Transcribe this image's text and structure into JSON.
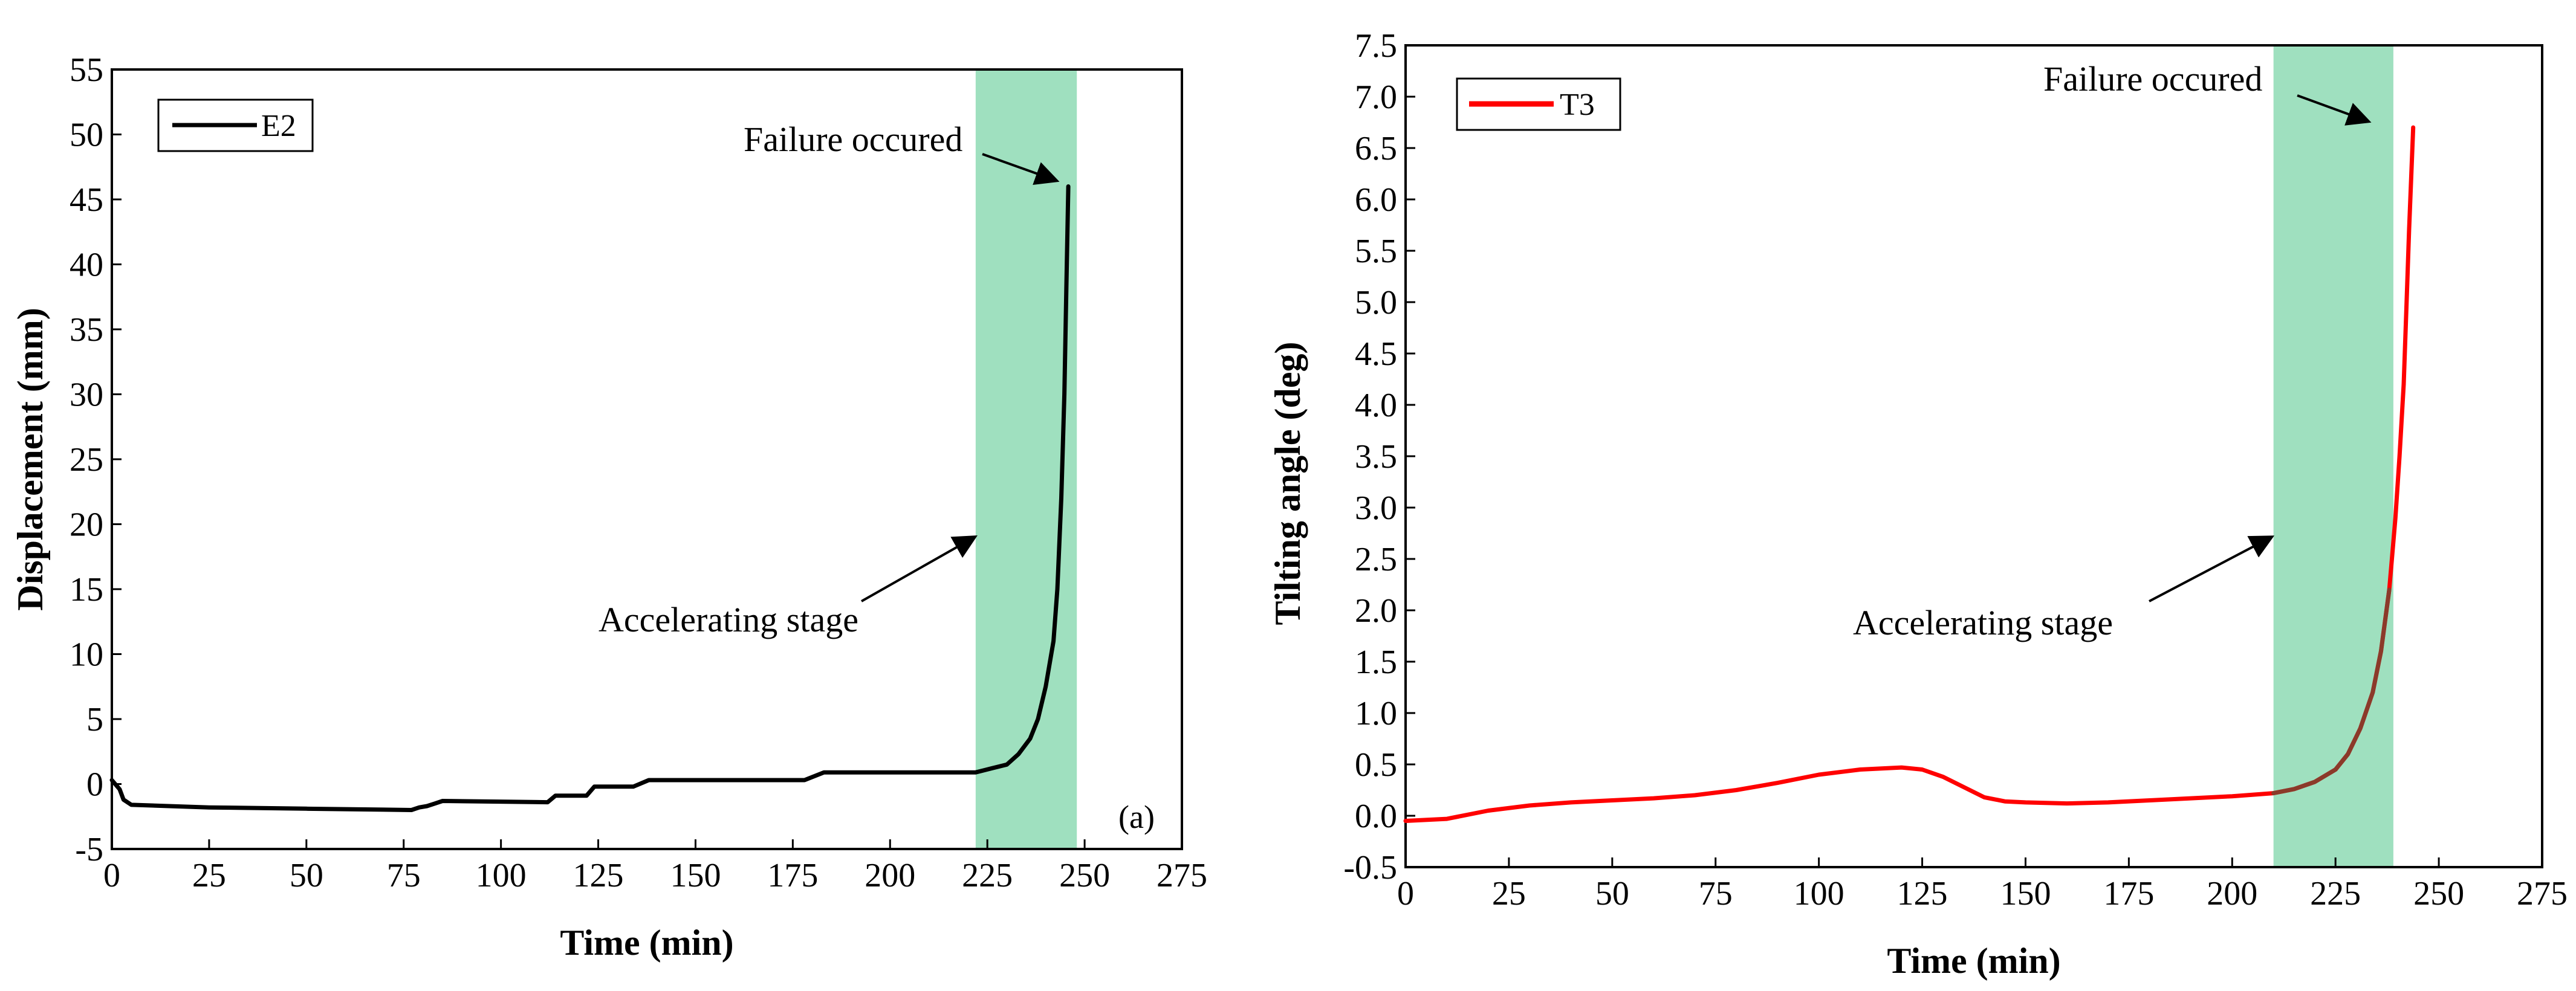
{
  "figure": {
    "shade_color": "#9fe0bf",
    "arrow_color": "#000000"
  },
  "chart_data": [
    {
      "type": "line",
      "title": "",
      "panel_label": "(a)",
      "xlabel": "Time (min)",
      "ylabel": "Displacement (mm)",
      "xlim": [
        0,
        275
      ],
      "ylim": [
        -5,
        55
      ],
      "xticks": [
        "0",
        "25",
        "50",
        "75",
        "100",
        "125",
        "150",
        "175",
        "200",
        "225",
        "250",
        "275"
      ],
      "yticks": [
        "-5",
        "0",
        "5",
        "10",
        "15",
        "20",
        "25",
        "30",
        "35",
        "40",
        "45",
        "50",
        "55"
      ],
      "shaded_region": {
        "x": [
          222,
          248
        ],
        "color": "#9fe0bf"
      },
      "series": [
        {
          "name": "E2",
          "color": "#000000",
          "points": [
            [
              0,
              0.3
            ],
            [
              2,
              -0.4
            ],
            [
              3,
              -1.2
            ],
            [
              5,
              -1.6
            ],
            [
              25,
              -1.8
            ],
            [
              50,
              -1.9
            ],
            [
              77,
              -2.0
            ],
            [
              79,
              -1.8
            ],
            [
              81,
              -1.7
            ],
            [
              83,
              -1.5
            ],
            [
              85,
              -1.3
            ],
            [
              112,
              -1.4
            ],
            [
              114,
              -0.9
            ],
            [
              122,
              -0.9
            ],
            [
              124,
              -0.2
            ],
            [
              134,
              -0.2
            ],
            [
              138,
              0.3
            ],
            [
              178,
              0.3
            ],
            [
              183,
              0.9
            ],
            [
              222,
              0.9
            ],
            [
              226,
              1.2
            ],
            [
              230,
              1.5
            ],
            [
              233,
              2.3
            ],
            [
              236,
              3.5
            ],
            [
              238,
              5.0
            ],
            [
              240,
              7.5
            ],
            [
              242,
              11.0
            ],
            [
              243,
              15.0
            ],
            [
              244,
              22.0
            ],
            [
              244.8,
              30.0
            ],
            [
              245.3,
              38.0
            ],
            [
              245.8,
              46.0
            ]
          ]
        }
      ],
      "annotations": [
        {
          "text": "Failure occured",
          "target": [
            245.6,
            46
          ]
        },
        {
          "text": "Accelerating stage",
          "target": [
            220,
            18.5
          ]
        }
      ]
    },
    {
      "type": "line",
      "title": "",
      "xlabel": "Time (min)",
      "ylabel": "Tilting angle (deg)",
      "xlim": [
        0,
        275
      ],
      "ylim": [
        -0.5,
        7.5
      ],
      "xticks": [
        "0",
        "25",
        "50",
        "75",
        "100",
        "125",
        "150",
        "175",
        "200",
        "225",
        "250",
        "275"
      ],
      "yticks": [
        "-0.5",
        "0.0",
        "0.5",
        "1.0",
        "1.5",
        "2.0",
        "2.5",
        "3.0",
        "3.5",
        "4.0",
        "4.5",
        "5.0",
        "5.5",
        "6.0",
        "6.5",
        "7.0",
        "7.5"
      ],
      "shaded_region": {
        "x": [
          210,
          239
        ],
        "color": "#9fe0bf"
      },
      "series": [
        {
          "name": "T3",
          "color": "#ff0000",
          "overlay_color": "#8b3a2a",
          "points": [
            [
              0,
              -0.05
            ],
            [
              10,
              -0.03
            ],
            [
              20,
              0.05
            ],
            [
              30,
              0.1
            ],
            [
              40,
              0.13
            ],
            [
              50,
              0.15
            ],
            [
              60,
              0.17
            ],
            [
              70,
              0.2
            ],
            [
              80,
              0.25
            ],
            [
              90,
              0.32
            ],
            [
              100,
              0.4
            ],
            [
              110,
              0.45
            ],
            [
              120,
              0.47
            ],
            [
              125,
              0.45
            ],
            [
              130,
              0.38
            ],
            [
              135,
              0.28
            ],
            [
              140,
              0.18
            ],
            [
              145,
              0.14
            ],
            [
              150,
              0.13
            ],
            [
              160,
              0.12
            ],
            [
              170,
              0.13
            ],
            [
              180,
              0.15
            ],
            [
              190,
              0.17
            ],
            [
              200,
              0.19
            ],
            [
              210,
              0.22
            ],
            [
              215,
              0.26
            ],
            [
              220,
              0.33
            ],
            [
              225,
              0.45
            ],
            [
              228,
              0.6
            ],
            [
              231,
              0.85
            ],
            [
              234,
              1.2
            ],
            [
              236,
              1.6
            ],
            [
              238,
              2.2
            ],
            [
              239.5,
              2.9
            ],
            [
              240.5,
              3.5
            ],
            [
              241.5,
              4.2
            ],
            [
              242.2,
              5.0
            ],
            [
              242.8,
              5.7
            ],
            [
              243.3,
              6.2
            ],
            [
              243.8,
              6.7
            ]
          ]
        }
      ],
      "annotations": [
        {
          "text": "Failure occured",
          "target": [
            236,
            6.75
          ]
        },
        {
          "text": "Accelerating stage",
          "target": [
            210,
            2.6
          ]
        }
      ]
    }
  ]
}
